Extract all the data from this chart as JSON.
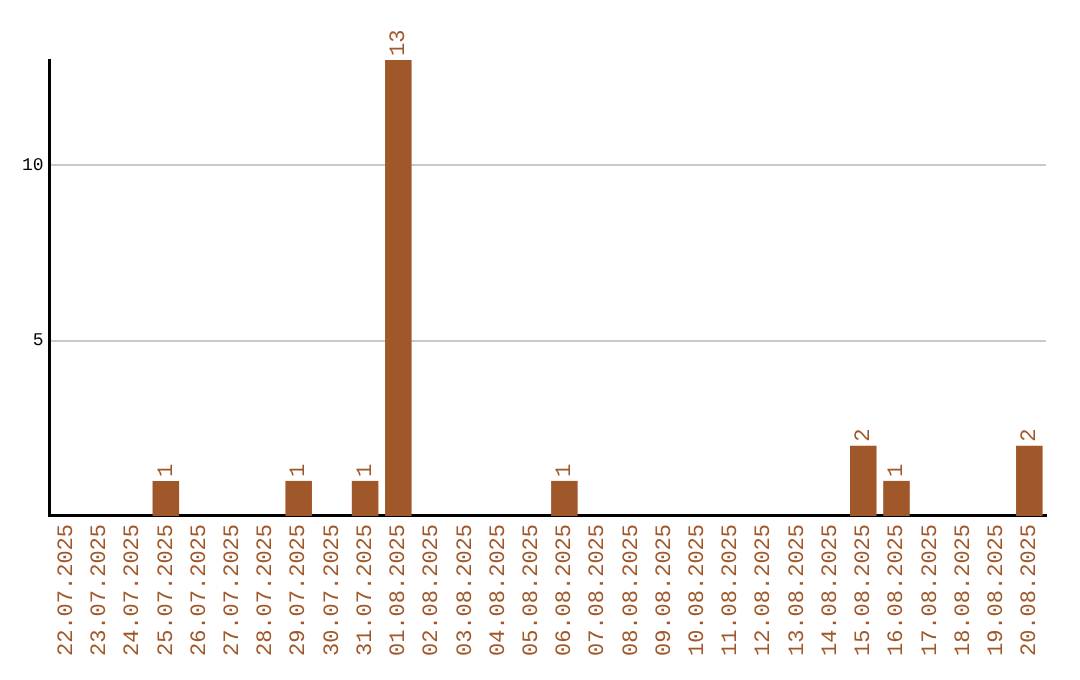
{
  "chart_data": {
    "type": "bar",
    "categories": [
      "22.07.2025",
      "23.07.2025",
      "24.07.2025",
      "25.07.2025",
      "26.07.2025",
      "27.07.2025",
      "28.07.2025",
      "29.07.2025",
      "30.07.2025",
      "31.07.2025",
      "01.08.2025",
      "02.08.2025",
      "03.08.2025",
      "04.08.2025",
      "05.08.2025",
      "06.08.2025",
      "07.08.2025",
      "08.08.2025",
      "09.08.2025",
      "10.08.2025",
      "11.08.2025",
      "12.08.2025",
      "13.08.2025",
      "14.08.2025",
      "15.08.2025",
      "16.08.2025",
      "17.08.2025",
      "18.08.2025",
      "19.08.2025",
      "20.08.2025"
    ],
    "values": [
      0,
      0,
      0,
      1,
      0,
      0,
      0,
      1,
      0,
      1,
      13,
      0,
      0,
      0,
      0,
      1,
      0,
      0,
      0,
      0,
      0,
      0,
      0,
      0,
      2,
      1,
      0,
      0,
      0,
      2
    ],
    "value_labels": [
      null,
      null,
      null,
      "1",
      null,
      null,
      null,
      "1",
      null,
      "1",
      "13",
      null,
      null,
      null,
      null,
      "1",
      null,
      null,
      null,
      null,
      null,
      null,
      null,
      null,
      "2",
      "1",
      null,
      null,
      null,
      "2"
    ],
    "color": "#a0582a",
    "ylim": [
      0,
      13
    ],
    "yticks": [
      5,
      10
    ],
    "grid": "y"
  }
}
